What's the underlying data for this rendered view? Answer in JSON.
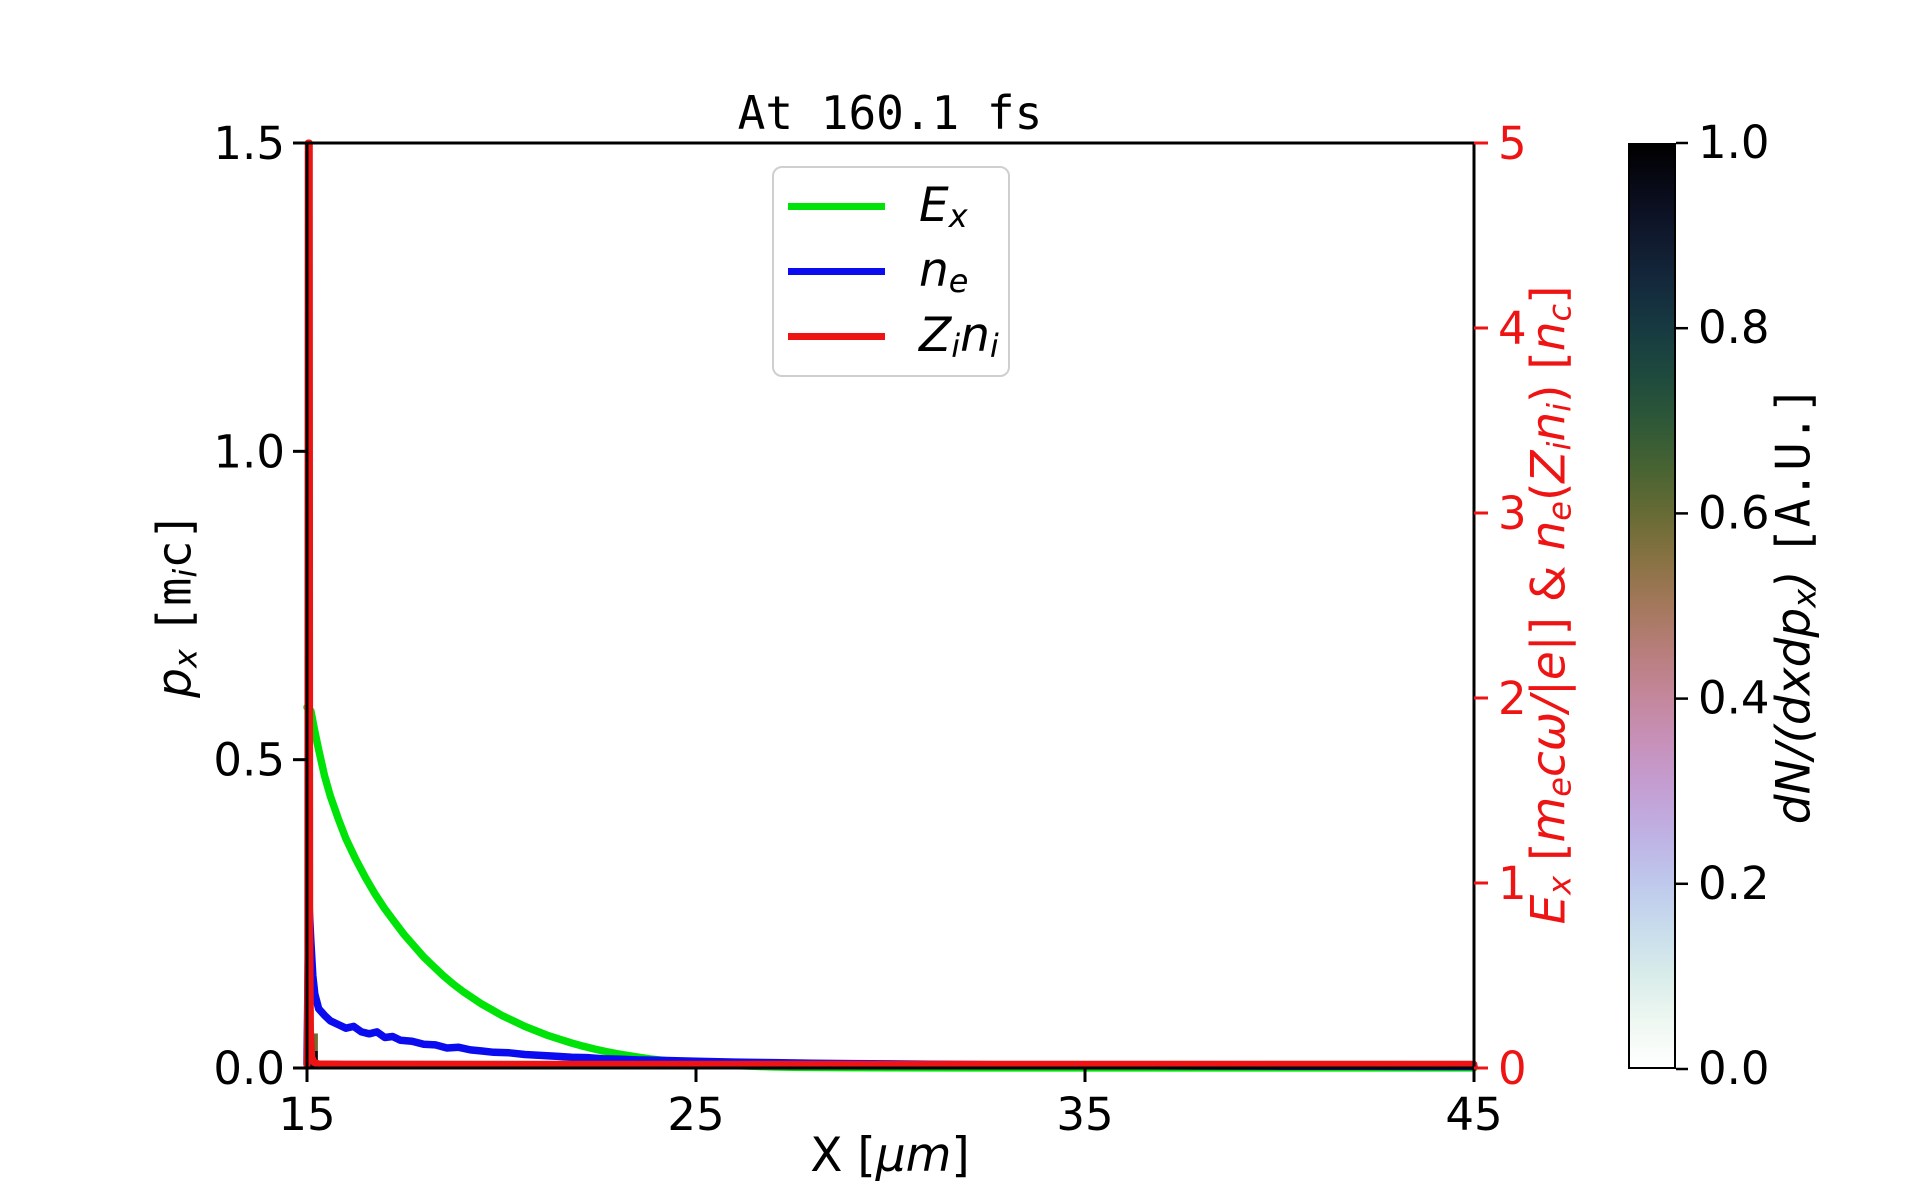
{
  "title": "At 160.1 fs",
  "chart_data": {
    "type": "line",
    "title": "At 160.1 fs",
    "x_axis": {
      "label_segments": [
        {
          "t": "X"
        },
        {
          "t": " ["
        },
        {
          "t": "μm",
          "i": 1
        },
        {
          "t": "]"
        }
      ],
      "lim": [
        15,
        45
      ],
      "ticks": [
        15,
        25,
        35,
        45
      ],
      "tick_labels": [
        "15",
        "25",
        "35",
        "45"
      ]
    },
    "y_axis_left": {
      "label_segments": [
        {
          "t": "p",
          "i": 1
        },
        {
          "t": "x",
          "i": 1,
          "s": 1
        },
        {
          "t": " "
        },
        {
          "t": "[",
          "m": 1
        },
        {
          "t": "m",
          "m": 1
        },
        {
          "t": "i",
          "i": 1,
          "s": 1
        },
        {
          "t": "c",
          "m": 1
        },
        {
          "t": "]",
          "m": 1
        }
      ],
      "lim": [
        0,
        1.5
      ],
      "ticks": [
        0,
        0.5,
        1.0,
        1.5
      ],
      "tick_labels": [
        "0.0",
        "0.5",
        "1.0",
        "1.5"
      ],
      "color": "#000000"
    },
    "y_axis_right": {
      "label_segments": [
        {
          "t": "E",
          "i": 1
        },
        {
          "t": "x",
          "i": 1,
          "s": 1
        },
        {
          "t": " ["
        },
        {
          "t": "m",
          "i": 1
        },
        {
          "t": "e",
          "i": 1,
          "s": 1
        },
        {
          "t": "c",
          "i": 1
        },
        {
          "t": "ω",
          "i": 1
        },
        {
          "t": "/",
          "i": 1
        },
        {
          "t": "|e|",
          "i": 1
        },
        {
          "t": "] & "
        },
        {
          "t": "n",
          "i": 1
        },
        {
          "t": "e",
          "i": 1,
          "s": 1
        },
        {
          "t": "("
        },
        {
          "t": "Z",
          "i": 1
        },
        {
          "t": "i",
          "i": 1,
          "s": 1
        },
        {
          "t": "n",
          "i": 1
        },
        {
          "t": "i",
          "i": 1,
          "s": 1
        },
        {
          "t": ") ["
        },
        {
          "t": "n",
          "i": 1
        },
        {
          "t": "c",
          "i": 1,
          "s": 1
        },
        {
          "t": "]"
        }
      ],
      "lim": [
        0,
        5
      ],
      "ticks": [
        0,
        1,
        2,
        3,
        4,
        5
      ],
      "tick_labels": [
        "0",
        "1",
        "2",
        "3",
        "4",
        "5"
      ],
      "color": "#ee1414"
    },
    "legend": {
      "items": [
        {
          "color": "#00e308",
          "segments": [
            {
              "t": "E",
              "i": 1
            },
            {
              "t": "x",
              "i": 1,
              "s": 1
            }
          ]
        },
        {
          "color": "#0b0bef",
          "segments": [
            {
              "t": "n",
              "i": 1
            },
            {
              "t": "e",
              "i": 1,
              "s": 1
            }
          ]
        },
        {
          "color": "#ee1414",
          "segments": [
            {
              "t": "Z",
              "i": 1
            },
            {
              "t": "i",
              "i": 1,
              "s": 1
            },
            {
              "t": "n",
              "i": 1
            },
            {
              "t": "i",
              "i": 1,
              "s": 1
            }
          ]
        }
      ]
    },
    "series": [
      {
        "name": "E_x",
        "color": "#00e308",
        "axis": "right",
        "width": 7.5,
        "points": [
          [
            15.0,
            1.95
          ],
          [
            15.1,
            1.93
          ],
          [
            15.2,
            1.82
          ],
          [
            15.3,
            1.72
          ],
          [
            15.45,
            1.58
          ],
          [
            15.6,
            1.47
          ],
          [
            15.8,
            1.35
          ],
          [
            16.0,
            1.24
          ],
          [
            16.25,
            1.13
          ],
          [
            16.5,
            1.03
          ],
          [
            16.75,
            0.94
          ],
          [
            17.0,
            0.86
          ],
          [
            17.25,
            0.79
          ],
          [
            17.5,
            0.72
          ],
          [
            17.75,
            0.66
          ],
          [
            18.0,
            0.6
          ],
          [
            18.25,
            0.55
          ],
          [
            18.5,
            0.5
          ],
          [
            18.75,
            0.455
          ],
          [
            19.0,
            0.415
          ],
          [
            19.25,
            0.38
          ],
          [
            19.5,
            0.345
          ],
          [
            19.75,
            0.315
          ],
          [
            20.0,
            0.285
          ],
          [
            20.3,
            0.255
          ],
          [
            20.6,
            0.225
          ],
          [
            20.9,
            0.2
          ],
          [
            21.2,
            0.175
          ],
          [
            21.5,
            0.155
          ],
          [
            21.8,
            0.135
          ],
          [
            22.1,
            0.118
          ],
          [
            22.4,
            0.102
          ],
          [
            22.7,
            0.088
          ],
          [
            23.0,
            0.076
          ],
          [
            23.4,
            0.062
          ],
          [
            23.8,
            0.05
          ],
          [
            24.2,
            0.04
          ],
          [
            24.6,
            0.032
          ],
          [
            25.0,
            0.025
          ],
          [
            25.5,
            0.018
          ],
          [
            26.0,
            0.013
          ],
          [
            26.5,
            0.009
          ],
          [
            27.0,
            0.006
          ],
          [
            27.5,
            0.004
          ],
          [
            28.0,
            0.003
          ],
          [
            29.0,
            0.002
          ],
          [
            30.0,
            0.001
          ],
          [
            32.0,
            0.0005
          ],
          [
            45.0,
            0.0003
          ]
        ]
      },
      {
        "name": "n_e",
        "color": "#0b0bef",
        "axis": "right",
        "width": 7.5,
        "points": [
          [
            15.0,
            0.02
          ],
          [
            15.05,
            0.9
          ],
          [
            15.1,
            0.68
          ],
          [
            15.15,
            0.5
          ],
          [
            15.2,
            0.4
          ],
          [
            15.3,
            0.32
          ],
          [
            15.45,
            0.285
          ],
          [
            15.6,
            0.255
          ],
          [
            15.8,
            0.235
          ],
          [
            16.0,
            0.215
          ],
          [
            16.2,
            0.225
          ],
          [
            16.4,
            0.195
          ],
          [
            16.6,
            0.185
          ],
          [
            16.8,
            0.195
          ],
          [
            17.0,
            0.165
          ],
          [
            17.2,
            0.17
          ],
          [
            17.4,
            0.15
          ],
          [
            17.7,
            0.145
          ],
          [
            18.0,
            0.128
          ],
          [
            18.3,
            0.125
          ],
          [
            18.6,
            0.108
          ],
          [
            18.9,
            0.112
          ],
          [
            19.2,
            0.098
          ],
          [
            19.5,
            0.092
          ],
          [
            19.8,
            0.085
          ],
          [
            20.2,
            0.082
          ],
          [
            20.6,
            0.073
          ],
          [
            21.0,
            0.068
          ],
          [
            21.4,
            0.064
          ],
          [
            21.8,
            0.058
          ],
          [
            22.2,
            0.056
          ],
          [
            22.6,
            0.05
          ],
          [
            23.0,
            0.048
          ],
          [
            23.5,
            0.044
          ],
          [
            24.0,
            0.042
          ],
          [
            24.5,
            0.039
          ],
          [
            25.0,
            0.036
          ],
          [
            26.0,
            0.032
          ],
          [
            27.0,
            0.029
          ],
          [
            28.0,
            0.026
          ],
          [
            29.0,
            0.024
          ],
          [
            30.0,
            0.022
          ],
          [
            31.0,
            0.02
          ],
          [
            32.0,
            0.019
          ],
          [
            33.0,
            0.017
          ],
          [
            34.5,
            0.015
          ],
          [
            36.0,
            0.013
          ],
          [
            38.0,
            0.011
          ],
          [
            40.0,
            0.01
          ],
          [
            42.0,
            0.009
          ],
          [
            45.0,
            0.008
          ]
        ]
      },
      {
        "name": "Z_i n_i",
        "color": "#ee1414",
        "axis": "right",
        "width": 7,
        "points": [
          [
            15.0,
            0.015
          ],
          [
            15.01,
            0.1
          ],
          [
            15.02,
            0.6
          ],
          [
            15.03,
            5.0
          ],
          [
            15.06,
            5.0
          ],
          [
            15.07,
            0.8
          ],
          [
            15.09,
            0.2
          ],
          [
            15.12,
            0.06
          ],
          [
            15.18,
            0.03
          ],
          [
            15.3,
            0.022
          ],
          [
            16.0,
            0.021
          ],
          [
            25.0,
            0.02
          ],
          [
            35.0,
            0.02
          ],
          [
            45.0,
            0.02
          ]
        ]
      }
    ],
    "histogram": {
      "quantity_segments": [
        {
          "t": "dN",
          "i": 1
        },
        {
          "t": "/(",
          "i": 1
        },
        {
          "t": "dxdp",
          "i": 1
        },
        {
          "t": "x",
          "i": 1,
          "s": 1
        },
        {
          "t": ")",
          "i": 1
        },
        {
          "t": " "
        },
        {
          "t": "[A.U.]",
          "m": 1
        }
      ],
      "patches": [
        {
          "x": [
            15.0,
            15.28
          ],
          "p": [
            0.0,
            0.028
          ],
          "color": "#0d0c0c"
        },
        {
          "x": [
            15.0,
            15.28
          ],
          "p": [
            0.028,
            0.056
          ],
          "color": "#6e6d33"
        },
        {
          "x": [
            15.0,
            15.1
          ],
          "p": [
            0.056,
            0.125
          ],
          "color": "#35303f"
        }
      ]
    },
    "colorbar": {
      "label_segments": [
        {
          "t": "dN",
          "i": 1
        },
        {
          "t": "/(",
          "i": 1
        },
        {
          "t": "dxdp",
          "i": 1
        },
        {
          "t": "x",
          "i": 1,
          "s": 1
        },
        {
          "t": ")",
          "i": 1
        },
        {
          "t": " "
        },
        {
          "t": "[A.U.]",
          "m": 1
        }
      ],
      "lim": [
        0,
        1
      ],
      "ticks": [
        0,
        0.2,
        0.4,
        0.6,
        0.8,
        1.0
      ],
      "tick_labels": [
        "0.0",
        "0.2",
        "0.4",
        "0.6",
        "0.8",
        "1.0"
      ],
      "colormap": "cubehelix_r",
      "stops": [
        [
          0.0,
          "#ffffff"
        ],
        [
          0.05,
          "#eef7f1"
        ],
        [
          0.1,
          "#d8ecea"
        ],
        [
          0.15,
          "#c8dcec"
        ],
        [
          0.2,
          "#bfc8ec"
        ],
        [
          0.25,
          "#bfb2e4"
        ],
        [
          0.3,
          "#c49fd4"
        ],
        [
          0.35,
          "#c791bb"
        ],
        [
          0.4,
          "#c4879d"
        ],
        [
          0.45,
          "#b87e7c"
        ],
        [
          0.5,
          "#a4785c"
        ],
        [
          0.55,
          "#887243"
        ],
        [
          0.6,
          "#676b35"
        ],
        [
          0.65,
          "#476332"
        ],
        [
          0.7,
          "#2e5837"
        ],
        [
          0.75,
          "#1e4a3e"
        ],
        [
          0.8,
          "#173a41"
        ],
        [
          0.85,
          "#14293c"
        ],
        [
          0.9,
          "#10192e"
        ],
        [
          0.95,
          "#090b1a"
        ],
        [
          1.0,
          "#000000"
        ]
      ]
    }
  }
}
